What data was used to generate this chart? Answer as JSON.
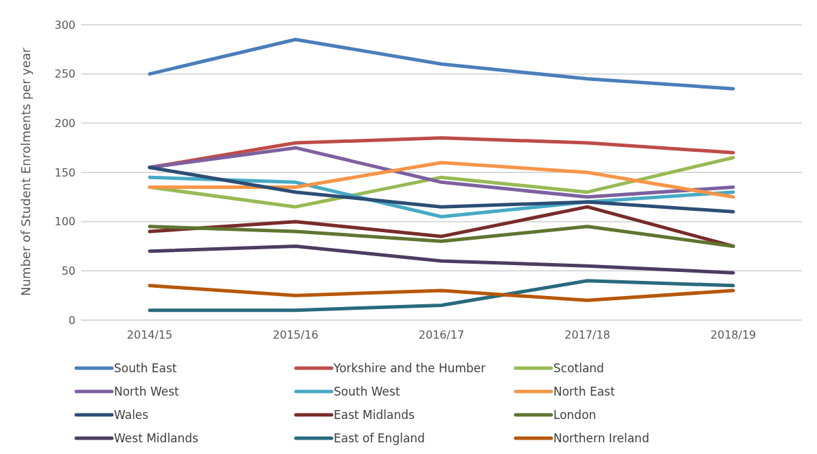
{
  "chart_data": {
    "type": "line",
    "ylabel": "Number of Student Enrolments per year",
    "categories": [
      "2014/15",
      "2015/16",
      "2016/17",
      "2017/18",
      "2018/19"
    ],
    "ylim": [
      0,
      300
    ],
    "yticks": [
      0,
      50,
      100,
      150,
      200,
      250,
      300
    ],
    "grid": "y",
    "legend": "bottom",
    "marker": "none",
    "series": [
      {
        "name": "South East",
        "color": "#4a7ebb",
        "values": [
          250,
          285,
          260,
          245,
          235
        ]
      },
      {
        "name": "Yorkshire and the Humber",
        "color": "#be4b48",
        "values": [
          155,
          180,
          185,
          180,
          170
        ]
      },
      {
        "name": "Scotland",
        "color": "#98b954",
        "values": [
          135,
          115,
          145,
          130,
          165
        ]
      },
      {
        "name": "North West",
        "color": "#7d60a0",
        "values": [
          155,
          175,
          140,
          125,
          135
        ]
      },
      {
        "name": "South West",
        "color": "#46aac5",
        "values": [
          145,
          140,
          105,
          120,
          130
        ]
      },
      {
        "name": "North East",
        "color": "#f69546",
        "values": [
          135,
          135,
          160,
          150,
          125
        ]
      },
      {
        "name": "Wales",
        "color": "#2c4d75",
        "values": [
          155,
          130,
          115,
          120,
          110
        ]
      },
      {
        "name": "East Midlands",
        "color": "#772c2a",
        "values": [
          90,
          100,
          85,
          115,
          75
        ]
      },
      {
        "name": "London",
        "color": "#5f7530",
        "values": [
          95,
          90,
          80,
          95,
          75
        ]
      },
      {
        "name": "West Midlands",
        "color": "#4d3b62",
        "values": [
          70,
          75,
          60,
          55,
          48
        ]
      },
      {
        "name": "East of England",
        "color": "#276a7c",
        "values": [
          10,
          10,
          15,
          40,
          35
        ]
      },
      {
        "name": "Northern Ireland",
        "color": "#b65708",
        "values": [
          35,
          25,
          30,
          20,
          30
        ]
      }
    ]
  }
}
